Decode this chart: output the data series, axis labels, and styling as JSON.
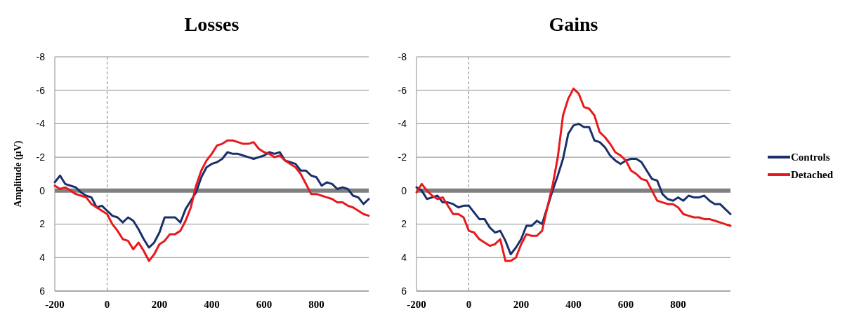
{
  "chart_data": [
    {
      "type": "line",
      "title": "Losses",
      "ylabel": "Amplitude (µV)",
      "xlim": [
        -200,
        1000
      ],
      "xticks": [
        -200,
        0,
        200,
        400,
        600,
        800
      ],
      "ylim": [
        6,
        -8
      ],
      "yticks": [
        -8,
        -6,
        -4,
        -2,
        0,
        2,
        4,
        6
      ],
      "grid": "y",
      "legend": false,
      "line_style": "solid",
      "marker": "none",
      "x": [
        -200,
        -180,
        -160,
        -140,
        -120,
        -100,
        -80,
        -60,
        -40,
        -20,
        0,
        20,
        40,
        60,
        80,
        100,
        120,
        140,
        160,
        180,
        200,
        220,
        240,
        260,
        280,
        300,
        320,
        340,
        360,
        380,
        400,
        420,
        440,
        460,
        480,
        500,
        520,
        540,
        560,
        580,
        600,
        620,
        640,
        660,
        680,
        700,
        720,
        740,
        760,
        780,
        800,
        820,
        840,
        860,
        880,
        900,
        920,
        940,
        960,
        980,
        1000
      ],
      "ref_lines": [
        {
          "axis": "y",
          "value": 0,
          "color": "#808080",
          "line_style": "solid"
        },
        {
          "axis": "x",
          "value": 0,
          "color": "#808080",
          "line_style": "dashed"
        }
      ],
      "series": [
        {
          "color": "#1a2f6b",
          "values": [
            -0.5,
            -0.9,
            -0.4,
            -0.3,
            -0.2,
            0.1,
            0.3,
            0.4,
            1.0,
            0.9,
            1.2,
            1.5,
            1.6,
            1.9,
            1.6,
            1.8,
            2.3,
            2.9,
            3.4,
            3.1,
            2.5,
            1.6,
            1.6,
            1.6,
            1.9,
            1.1,
            0.6,
            0.1,
            -0.8,
            -1.4,
            -1.6,
            -1.7,
            -1.9,
            -2.3,
            -2.2,
            -2.2,
            -2.1,
            -2.0,
            -1.9,
            -2.0,
            -2.1,
            -2.3,
            -2.2,
            -2.3,
            -1.8,
            -1.7,
            -1.6,
            -1.2,
            -1.2,
            -0.9,
            -0.8,
            -0.3,
            -0.5,
            -0.4,
            -0.1,
            -0.2,
            -0.1,
            0.3,
            0.4,
            0.8,
            0.5
          ]
        },
        {
          "color": "#e8191c",
          "values": [
            -0.3,
            -0.1,
            -0.2,
            0.0,
            0.2,
            0.3,
            0.4,
            0.8,
            1.0,
            1.2,
            1.4,
            2.0,
            2.4,
            2.9,
            3.0,
            3.5,
            3.1,
            3.6,
            4.2,
            3.8,
            3.2,
            3.0,
            2.6,
            2.6,
            2.4,
            1.8,
            1.0,
            -0.3,
            -1.2,
            -1.8,
            -2.2,
            -2.7,
            -2.8,
            -3.0,
            -3.0,
            -2.9,
            -2.8,
            -2.8,
            -2.9,
            -2.5,
            -2.3,
            -2.2,
            -2.0,
            -2.1,
            -1.8,
            -1.6,
            -1.4,
            -1.0,
            -0.4,
            0.2,
            0.2,
            0.3,
            0.4,
            0.5,
            0.7,
            0.7,
            0.9,
            1.0,
            1.2,
            1.4,
            1.5
          ]
        }
      ]
    },
    {
      "type": "line",
      "title": "Gains",
      "xlim": [
        -200,
        1000
      ],
      "xticks": [
        -200,
        0,
        200,
        400,
        600,
        800
      ],
      "ylim": [
        6,
        -8
      ],
      "yticks": [
        -8,
        -6,
        -4,
        -2,
        0,
        2,
        4,
        6
      ],
      "grid": "y",
      "legend": "right",
      "line_style": "solid",
      "marker": "none",
      "x": [
        -200,
        -180,
        -160,
        -140,
        -120,
        -100,
        -80,
        -60,
        -40,
        -20,
        0,
        20,
        40,
        60,
        80,
        100,
        120,
        140,
        160,
        180,
        200,
        220,
        240,
        260,
        280,
        300,
        320,
        340,
        360,
        380,
        400,
        420,
        440,
        460,
        480,
        500,
        520,
        540,
        560,
        580,
        600,
        620,
        640,
        660,
        680,
        700,
        720,
        740,
        760,
        780,
        800,
        820,
        840,
        860,
        880,
        900,
        920,
        940,
        960,
        980,
        1000
      ],
      "ref_lines": [
        {
          "axis": "y",
          "value": 0,
          "color": "#808080",
          "line_style": "solid"
        },
        {
          "axis": "x",
          "value": 0,
          "color": "#808080",
          "line_style": "dashed"
        }
      ],
      "series": [
        {
          "name": "Controls",
          "color": "#1a2f6b",
          "values": [
            -0.2,
            0.0,
            0.5,
            0.4,
            0.3,
            0.7,
            0.7,
            0.8,
            1.0,
            0.9,
            0.9,
            1.3,
            1.7,
            1.7,
            2.2,
            2.5,
            2.4,
            3.0,
            3.8,
            3.4,
            2.9,
            2.1,
            2.1,
            1.8,
            2.0,
            1.0,
            0.0,
            -0.9,
            -1.9,
            -3.4,
            -3.9,
            -4.0,
            -3.8,
            -3.8,
            -3.0,
            -2.9,
            -2.6,
            -2.1,
            -1.8,
            -1.6,
            -1.8,
            -1.9,
            -1.9,
            -1.7,
            -1.2,
            -0.7,
            -0.6,
            0.2,
            0.5,
            0.6,
            0.4,
            0.6,
            0.3,
            0.4,
            0.4,
            0.3,
            0.6,
            0.8,
            0.8,
            1.1,
            1.4
          ]
        },
        {
          "name": "Detached",
          "color": "#e8191c",
          "values": [
            0.1,
            -0.4,
            0.0,
            0.3,
            0.5,
            0.4,
            0.9,
            1.4,
            1.4,
            1.6,
            2.4,
            2.5,
            2.9,
            3.1,
            3.3,
            3.2,
            2.9,
            4.2,
            4.2,
            4.0,
            3.2,
            2.6,
            2.7,
            2.7,
            2.4,
            1.0,
            -0.3,
            -2.0,
            -4.5,
            -5.5,
            -6.1,
            -5.8,
            -5.0,
            -4.9,
            -4.5,
            -3.5,
            -3.2,
            -2.8,
            -2.3,
            -2.1,
            -1.8,
            -1.2,
            -1.0,
            -0.7,
            -0.6,
            0.0,
            0.6,
            0.7,
            0.8,
            0.8,
            1.0,
            1.4,
            1.5,
            1.6,
            1.6,
            1.7,
            1.7,
            1.8,
            1.9,
            2.0,
            2.1
          ]
        }
      ]
    }
  ]
}
